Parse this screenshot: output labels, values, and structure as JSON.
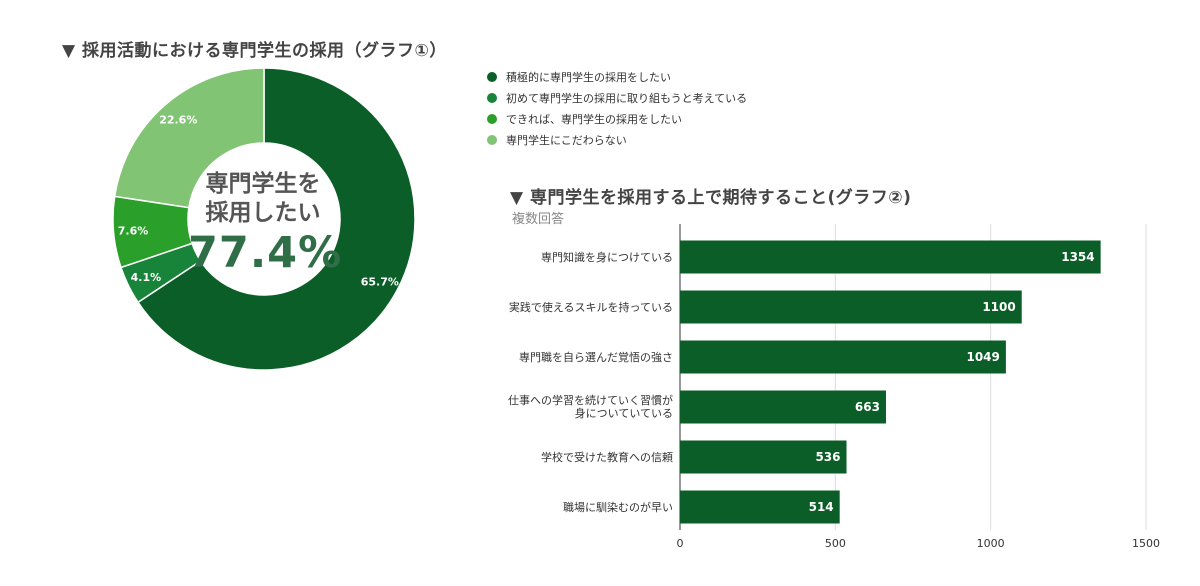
{
  "donut": {
    "title": "▼ 採用活動における専門学生の採用（グラフ①）",
    "center_label_line1": "専門学生を",
    "center_label_line2": "採用したい",
    "center_value": "77.4%"
  },
  "bar": {
    "title": "▼ 専門学生を採用する上で期待すること(グラフ②)",
    "subtitle": "複数回答"
  },
  "chart_data": [
    {
      "type": "pie",
      "title": "▼ 採用活動における専門学生の採用（グラフ①）",
      "labels": [
        "積極的に専門学生の採用をしたい",
        "初めて専門学生の採用に取り組もうと考えている",
        "できれば、専門学生の採用をしたい",
        "専門学生にこだわらない"
      ],
      "values": [
        65.7,
        4.1,
        7.6,
        22.6
      ],
      "value_labels": [
        "65.7%",
        "4.1%",
        "7.6%",
        "22.6%"
      ],
      "colors": [
        "#0b5e27",
        "#17843a",
        "#2aa02b",
        "#81c474"
      ],
      "legend_position": "right",
      "hole": true
    },
    {
      "type": "bar",
      "orientation": "horizontal",
      "title": "▼ 専門学生を採用する上で期待すること(グラフ②)",
      "subtitle": "複数回答",
      "categories": [
        "専門知識を身につけている",
        "実践で使えるスキルを持っている",
        "専門職を自ら選んだ覚悟の強さ",
        "仕事への学習を続けていく習慣が\n身についていている",
        "学校で受けた教育への信頼",
        "職場に馴染むのが早い"
      ],
      "values": [
        1354,
        1100,
        1049,
        663,
        536,
        514
      ],
      "value_labels": [
        "1354",
        "1100",
        "1049",
        "663",
        "536",
        "514"
      ],
      "xlim": [
        0,
        1500
      ],
      "xticks": [
        "0",
        "500",
        "1000",
        "1500"
      ],
      "grid": true,
      "color": "#0b5e27"
    }
  ]
}
